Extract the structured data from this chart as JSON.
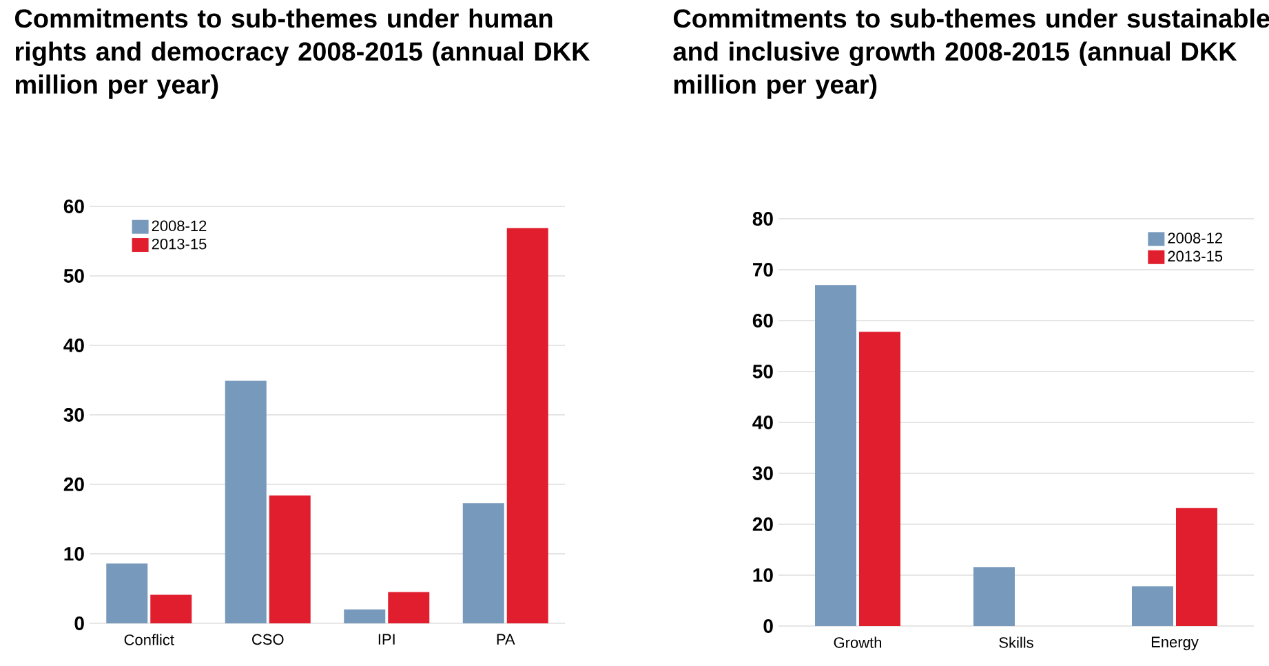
{
  "chart_data": [
    {
      "type": "bar",
      "title": "Commitments to sub-themes under human rights and democracy 2008-2015 (annual DKK million per year)",
      "categories": [
        "Conflict",
        "CSO",
        "IPI",
        "PA"
      ],
      "series": [
        {
          "name": "2008-12",
          "color": "#7799bb",
          "values": [
            8.6,
            34.9,
            2.0,
            17.3
          ]
        },
        {
          "name": "2013-15",
          "color": "#e01e2e",
          "values": [
            4.1,
            18.4,
            4.5,
            56.9
          ]
        }
      ],
      "ylim": [
        0,
        60
      ],
      "yticks": [
        0,
        10,
        20,
        30,
        40,
        50,
        60
      ],
      "grid": "y",
      "legend": "top left"
    },
    {
      "type": "bar",
      "title": "Commitments to sub-themes under sustainable and inclusive growth 2008-2015 (annual DKK million per year)",
      "categories": [
        "Growth",
        "Skills",
        "Energy"
      ],
      "series": [
        {
          "name": "2008-12",
          "color": "#7799bb",
          "values": [
            67,
            11.6,
            7.8
          ]
        },
        {
          "name": "2013-15",
          "color": "#e01e2e",
          "values": [
            57.8,
            null,
            23.2
          ]
        }
      ],
      "ylim": [
        0,
        80
      ],
      "yticks": [
        0,
        10,
        20,
        30,
        40,
        50,
        60,
        70,
        80
      ],
      "grid": "y",
      "legend": "top right"
    }
  ]
}
